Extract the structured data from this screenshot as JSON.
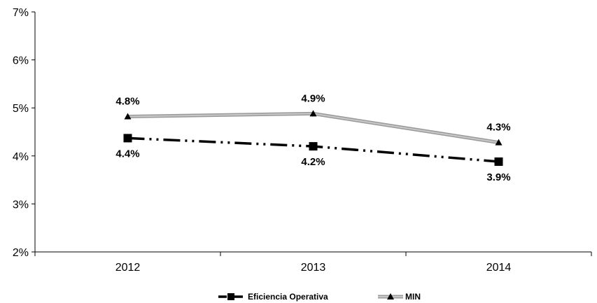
{
  "chart_data": {
    "type": "line",
    "categories": [
      "2012",
      "2013",
      "2014"
    ],
    "series": [
      {
        "name": "Eficiencia Operativa",
        "values": [
          4.37,
          4.2,
          3.88
        ],
        "labels": [
          "4.4%",
          "4.2%",
          "3.9%"
        ],
        "color": "#000000",
        "marker": "square",
        "line_style": "dash-dot-dot"
      },
      {
        "name": "MIN",
        "values": [
          4.82,
          4.88,
          4.28
        ],
        "labels": [
          "4.8%",
          "4.9%",
          "4.3%"
        ],
        "color": "#999999",
        "marker": "triangle",
        "line_style": "solid"
      }
    ],
    "y_ticks": [
      "2%",
      "3%",
      "4%",
      "5%",
      "6%",
      "7%"
    ],
    "ylim": [
      2,
      7
    ],
    "grid": false,
    "legend": "bottom"
  }
}
